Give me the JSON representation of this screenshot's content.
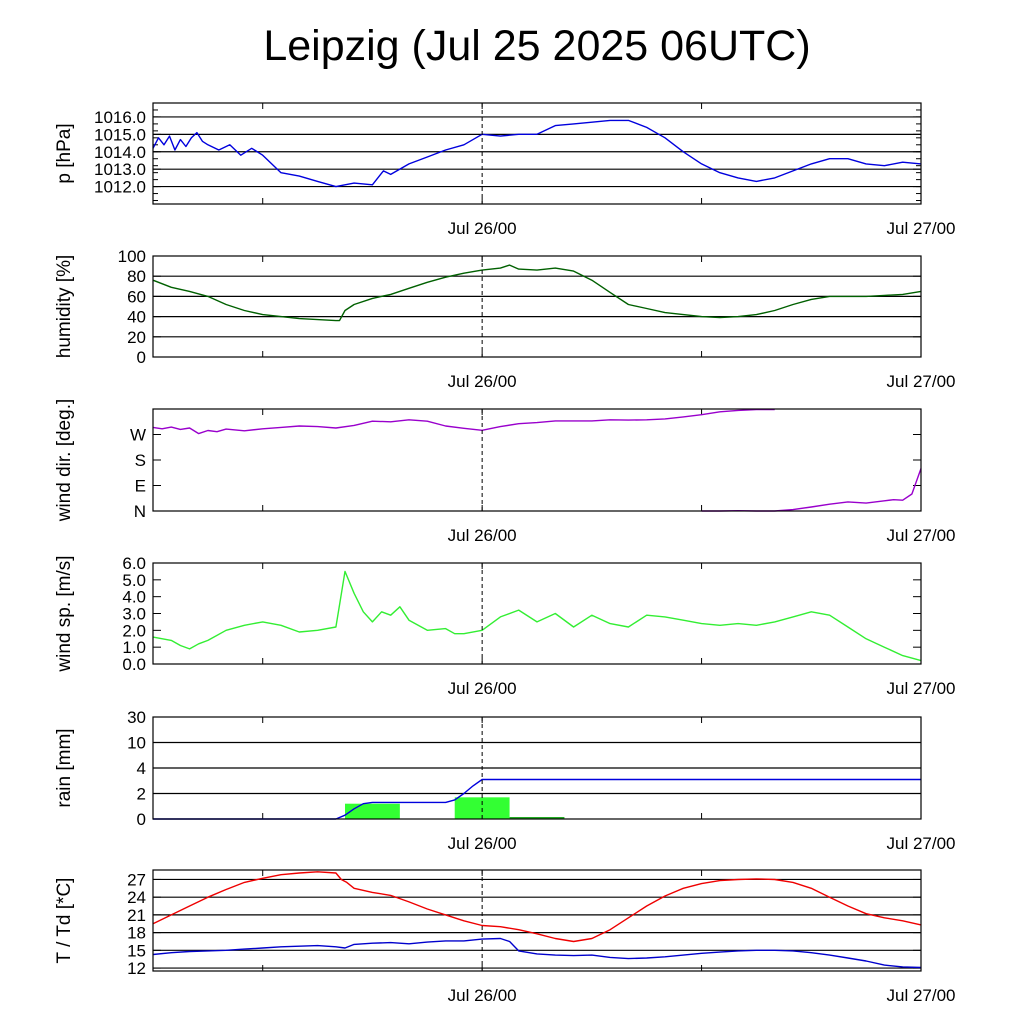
{
  "title": "Leipzig (Jul 25 2025 06UTC)",
  "time_axis": {
    "start_hour": 0,
    "end_hour": 42,
    "labels": [
      {
        "text": "Jul 26/00",
        "hour": 18
      },
      {
        "text": "Jul 27/00",
        "hour": 42
      }
    ],
    "minor_tick_hours": [
      6,
      18,
      30
    ]
  },
  "colors": {
    "pressure": "#0000dd",
    "humidity": "#006000",
    "wind_dir": "#9900cc",
    "wind_speed": "#33ee33",
    "rain_line": "#0000dd",
    "rain_bar": "#33ff33",
    "temperature": "#ee0000",
    "dewpoint": "#0000cc"
  },
  "chart_data": [
    {
      "id": "pressure",
      "type": "line",
      "ylabel": "p [hPa]",
      "ylim": [
        1011.0,
        1016.8
      ],
      "yticks": [
        1012.0,
        1013.0,
        1014.0,
        1015.0,
        1016.0
      ],
      "ytick_labels": [
        "1012.0",
        "1013.0",
        "1014.0",
        "1015.0",
        "1016.0"
      ],
      "grid": true,
      "series": [
        {
          "color_key": "pressure",
          "x": [
            0,
            0.3,
            0.6,
            0.9,
            1.2,
            1.5,
            1.8,
            2.1,
            2.4,
            2.7,
            3.0,
            3.6,
            4.2,
            4.8,
            5.4,
            6.0,
            7.0,
            8.0,
            9.0,
            10.0,
            11.0,
            12.0,
            12.6,
            13.0,
            14.0,
            15.0,
            16.0,
            17.0,
            18.0,
            19.0,
            20.0,
            21.0,
            22.0,
            23.0,
            24.0,
            25.0,
            26.0,
            27.0,
            28.0,
            29.0,
            30.0,
            31.0,
            32.0,
            33.0,
            34.0,
            35.0,
            36.0,
            37.0,
            38.0,
            39.0,
            40.0,
            41.0,
            42.0
          ],
          "y": [
            1014.2,
            1014.8,
            1014.4,
            1014.9,
            1014.1,
            1014.7,
            1014.3,
            1014.8,
            1015.1,
            1014.6,
            1014.4,
            1014.1,
            1014.4,
            1013.8,
            1014.2,
            1013.8,
            1012.8,
            1012.6,
            1012.3,
            1012.0,
            1012.2,
            1012.1,
            1012.9,
            1012.7,
            1013.3,
            1013.7,
            1014.1,
            1014.4,
            1015.0,
            1014.9,
            1015.0,
            1015.0,
            1015.5,
            1015.6,
            1015.7,
            1015.8,
            1015.8,
            1015.4,
            1014.8,
            1014.0,
            1013.3,
            1012.8,
            1012.5,
            1012.3,
            1012.5,
            1012.9,
            1013.3,
            1013.6,
            1013.6,
            1013.3,
            1013.2,
            1013.4,
            1013.3
          ]
        }
      ]
    },
    {
      "id": "humidity",
      "type": "line",
      "ylabel": "humidity [%]",
      "ylim": [
        0,
        100
      ],
      "yticks": [
        0,
        20,
        40,
        60,
        80,
        100
      ],
      "ytick_labels": [
        "0",
        "20",
        "40",
        "60",
        "80",
        "100"
      ],
      "grid": true,
      "series": [
        {
          "color_key": "humidity",
          "x": [
            0,
            1,
            2,
            3,
            4,
            5,
            6,
            7,
            8,
            9,
            10,
            10.2,
            10.5,
            11,
            12,
            13,
            14,
            15,
            16,
            17,
            18,
            19,
            19.5,
            20,
            21,
            22,
            23,
            24,
            25,
            26,
            27,
            28,
            29,
            30,
            31,
            32,
            33,
            34,
            35,
            36,
            37,
            38,
            39,
            40,
            41,
            42
          ],
          "y": [
            76,
            69,
            65,
            60,
            52,
            46,
            42,
            40,
            38,
            37,
            36,
            36,
            46,
            52,
            58,
            62,
            68,
            74,
            79,
            83,
            86,
            88,
            91,
            87,
            86,
            88,
            85,
            76,
            64,
            52,
            48,
            44,
            42,
            40,
            39,
            40,
            42,
            46,
            52,
            57,
            60,
            60,
            60,
            61,
            62,
            65
          ]
        }
      ]
    },
    {
      "id": "wind_dir",
      "type": "line",
      "ylabel": "wind dir. [deg.]",
      "ylim": [
        0,
        360
      ],
      "yticks": [
        0,
        90,
        180,
        270
      ],
      "ytick_labels": [
        "N",
        "E",
        "S",
        "W"
      ],
      "grid": false,
      "series": [
        {
          "color_key": "wind_dir",
          "x": [
            0,
            0.5,
            1.0,
            1.5,
            2.0,
            2.5,
            3.0,
            3.5,
            4.0,
            5.0,
            6.0,
            7.0,
            8.0,
            9.0,
            10.0,
            11.0,
            12.0,
            13.0,
            14.0,
            15.0,
            16.0,
            17.0,
            18.0,
            19.0,
            20.0,
            21.0,
            22.0,
            23.0,
            24.0,
            25.0,
            26.0,
            27.0,
            28.0,
            29.0,
            30.0,
            31.0,
            32.0,
            33.0,
            34.0
          ],
          "y": [
            295,
            290,
            296,
            288,
            293,
            273,
            284,
            280,
            289,
            283,
            290,
            295,
            300,
            298,
            293,
            302,
            317,
            315,
            322,
            317,
            300,
            292,
            285,
            298,
            308,
            312,
            318,
            318,
            318,
            322,
            321,
            322,
            325,
            332,
            340,
            350,
            355,
            358,
            358
          ]
        },
        {
          "color_key": "wind_dir",
          "x": [
            30.0,
            31.0,
            32.0,
            33.0,
            34.0,
            35.0,
            36.0,
            37.0,
            38.0,
            39.0,
            40.0,
            40.5,
            41.0,
            41.5,
            42.0
          ],
          "y": [
            0,
            0,
            1,
            0,
            0,
            5,
            14,
            24,
            32,
            28,
            36,
            40,
            38,
            60,
            150
          ]
        }
      ]
    },
    {
      "id": "wind_speed",
      "type": "line",
      "ylabel": "wind sp. [m/s]",
      "ylim": [
        0,
        6.0
      ],
      "yticks": [
        0.0,
        1.0,
        2.0,
        3.0,
        4.0,
        5.0,
        6.0
      ],
      "ytick_labels": [
        "0.0",
        "1.0",
        "2.0",
        "3.0",
        "4.0",
        "5.0",
        "6.0"
      ],
      "grid": false,
      "series": [
        {
          "color_key": "wind_speed",
          "x": [
            0,
            1,
            1.5,
            2,
            2.5,
            3,
            4,
            5,
            6,
            7,
            8,
            9,
            10,
            10.2,
            10.5,
            11.0,
            11.5,
            12.0,
            12.5,
            13.0,
            13.5,
            14.0,
            15,
            16,
            16.5,
            17,
            18,
            19,
            20,
            21,
            22,
            23,
            24,
            25,
            26,
            27,
            28,
            29,
            30,
            31,
            32,
            33,
            34,
            35,
            36,
            37,
            38,
            39,
            40,
            41,
            42
          ],
          "y": [
            1.6,
            1.4,
            1.1,
            0.9,
            1.2,
            1.4,
            2.0,
            2.3,
            2.5,
            2.3,
            1.9,
            2.0,
            2.2,
            3.5,
            5.5,
            4.2,
            3.1,
            2.5,
            3.1,
            2.9,
            3.4,
            2.6,
            2.0,
            2.1,
            1.8,
            1.8,
            2.0,
            2.8,
            3.2,
            2.5,
            3.0,
            2.2,
            2.9,
            2.4,
            2.2,
            2.9,
            2.8,
            2.6,
            2.4,
            2.3,
            2.4,
            2.3,
            2.5,
            2.8,
            3.1,
            2.9,
            2.2,
            1.5,
            1.0,
            0.5,
            0.2
          ]
        }
      ]
    },
    {
      "id": "rain",
      "type": "bar+line",
      "ylabel": "rain [mm]",
      "ylim": [
        0,
        30
      ],
      "yticks": [
        0,
        2,
        4,
        10,
        30
      ],
      "ytick_labels": [
        "0",
        "2",
        "4",
        "10",
        "30"
      ],
      "grid": true,
      "scale": "piecewise",
      "bars": [
        {
          "start": 10.5,
          "end": 13.5,
          "value": 1.2
        },
        {
          "start": 16.5,
          "end": 19.5,
          "value": 1.7
        },
        {
          "start": 19.5,
          "end": 22.5,
          "value": 0.05
        }
      ],
      "series": [
        {
          "color_key": "rain_line",
          "x": [
            0,
            10.0,
            10.5,
            11.0,
            11.5,
            12.0,
            13.0,
            16.0,
            16.5,
            17.0,
            17.5,
            18.0,
            42.0
          ],
          "y": [
            0,
            0,
            0.3,
            0.8,
            1.2,
            1.3,
            1.3,
            1.3,
            1.5,
            2.0,
            2.6,
            3.1,
            3.1
          ]
        }
      ]
    },
    {
      "id": "temperature",
      "type": "line",
      "ylabel": "T / Td [*C]",
      "ylim": [
        11.5,
        28.6
      ],
      "yticks": [
        12,
        15,
        18,
        21,
        24,
        27
      ],
      "ytick_labels": [
        "12",
        "15",
        "18",
        "21",
        "24",
        "27"
      ],
      "grid": true,
      "series": [
        {
          "color_key": "temperature",
          "x": [
            0,
            1,
            2,
            3,
            4,
            5,
            6,
            7,
            8,
            9,
            10,
            10.3,
            10.6,
            11,
            12,
            13,
            14,
            15,
            16,
            17,
            18,
            19,
            20,
            21,
            22,
            23,
            24,
            25,
            26,
            27,
            28,
            29,
            30,
            31,
            32,
            33,
            34,
            35,
            36,
            37,
            38,
            39,
            40,
            41,
            42
          ],
          "y": [
            19.5,
            21.0,
            22.5,
            24.0,
            25.3,
            26.5,
            27.2,
            27.8,
            28.1,
            28.3,
            28.1,
            27.0,
            26.5,
            25.5,
            24.8,
            24.3,
            23.2,
            22.0,
            21.0,
            20.0,
            19.2,
            19.0,
            18.5,
            17.8,
            17.0,
            16.5,
            17.0,
            18.5,
            20.5,
            22.5,
            24.2,
            25.5,
            26.3,
            26.8,
            27.0,
            27.1,
            27.0,
            26.5,
            25.5,
            24.0,
            22.5,
            21.2,
            20.5,
            20.0,
            19.3
          ]
        },
        {
          "color_key": "dewpoint",
          "x": [
            0,
            1,
            2,
            3,
            4,
            5,
            6,
            7,
            8,
            9,
            10,
            10.5,
            11,
            12,
            13,
            14,
            15,
            16,
            17,
            18,
            19,
            19.5,
            20,
            21,
            22,
            23,
            24,
            25,
            26,
            27,
            28,
            29,
            30,
            31,
            32,
            33,
            34,
            35,
            36,
            37,
            38,
            39,
            40,
            41,
            42
          ],
          "y": [
            14.3,
            14.6,
            14.8,
            14.9,
            15.0,
            15.2,
            15.4,
            15.6,
            15.7,
            15.8,
            15.6,
            15.4,
            16.0,
            16.2,
            16.3,
            16.1,
            16.4,
            16.6,
            16.6,
            16.9,
            17.0,
            16.5,
            14.9,
            14.4,
            14.2,
            14.1,
            14.2,
            13.8,
            13.6,
            13.7,
            13.9,
            14.2,
            14.5,
            14.7,
            14.9,
            15.0,
            15.0,
            14.9,
            14.6,
            14.2,
            13.7,
            13.2,
            12.5,
            12.2,
            12.1
          ]
        }
      ]
    }
  ]
}
